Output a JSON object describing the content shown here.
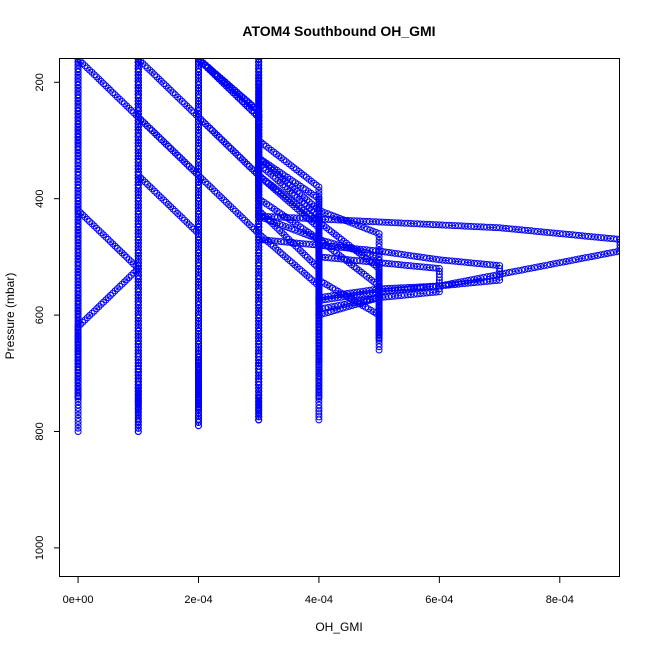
{
  "chart_data": {
    "type": "scatter",
    "title": "ATOM4 Southbound OH_GMI",
    "xlabel": "OH_GMI",
    "ylabel": "Pressure (mbar)",
    "xlim": [
      -3e-05,
      0.0009
    ],
    "ylim": [
      1050,
      160
    ],
    "y_reversed": true,
    "x_ticks": [
      0,
      0.0002,
      0.0004,
      0.0006,
      0.0008
    ],
    "x_tick_labels": [
      "0e+00",
      "2e-04",
      "4e-04",
      "6e-04",
      "8e-04"
    ],
    "y_ticks": [
      200,
      400,
      600,
      800,
      1000
    ],
    "y_tick_labels": [
      "200",
      "400",
      "600",
      "800",
      "1000"
    ],
    "grid": false,
    "legend": "none",
    "marker": "open-circle",
    "line_style": "dashed",
    "color": "#0000ff",
    "series": [
      {
        "x": [
          0.0,
          0.0,
          0.0,
          0.0,
          0.0,
          0.0,
          0.0,
          0.0
        ],
        "y": [
          160,
          300,
          420,
          520,
          620,
          700,
          760,
          800
        ]
      },
      {
        "x": [
          0.0,
          0.0,
          0.0,
          0.0001,
          0.0,
          0.0,
          0.0
        ],
        "y": [
          160,
          300,
          420,
          520,
          620,
          700,
          740
        ]
      },
      {
        "x": [
          0.0,
          0.0,
          0.0,
          0.0,
          0.0,
          0.0,
          0.0,
          0.0
        ],
        "y": [
          160,
          260,
          360,
          460,
          560,
          650,
          710,
          740
        ]
      },
      {
        "x": [
          0.0,
          0.0001,
          0.0001,
          0.0001,
          0.0001,
          0.0001,
          0.0001,
          0.0001
        ],
        "y": [
          160,
          260,
          360,
          460,
          560,
          650,
          720,
          750
        ]
      },
      {
        "x": [
          0.0001,
          0.0001,
          0.0001,
          0.0001,
          0.0001,
          0.0001,
          0.0001,
          0.0001
        ],
        "y": [
          160,
          260,
          360,
          460,
          560,
          650,
          730,
          760
        ]
      },
      {
        "x": [
          0.0001,
          0.0001,
          0.0001,
          0.0001,
          0.0001,
          0.0001,
          0.0001,
          0.0001,
          0.0001
        ],
        "y": [
          160,
          260,
          360,
          460,
          560,
          650,
          720,
          760,
          800
        ]
      },
      {
        "x": [
          0.0001,
          0.0001,
          0.0001,
          0.0001,
          0.0001,
          0.0001,
          0.0001,
          0.0001
        ],
        "y": [
          160,
          260,
          360,
          460,
          560,
          650,
          730,
          800
        ]
      },
      {
        "x": [
          0.0001,
          0.0001,
          0.0001,
          0.0002,
          0.0002,
          0.0002,
          0.0002,
          0.0002
        ],
        "y": [
          160,
          260,
          360,
          460,
          560,
          650,
          740,
          780
        ]
      },
      {
        "x": [
          0.0001,
          0.0001,
          0.0002,
          0.0002,
          0.0002,
          0.0002,
          0.0002,
          0.0002
        ],
        "y": [
          160,
          260,
          360,
          460,
          560,
          650,
          740,
          790
        ]
      },
      {
        "x": [
          0.0001,
          0.0001,
          0.0002,
          0.0002,
          0.0002,
          0.0002,
          0.0002
        ],
        "y": [
          160,
          260,
          360,
          460,
          560,
          650,
          740
        ]
      },
      {
        "x": [
          0.0001,
          0.0002,
          0.0002,
          0.0002,
          0.0002,
          0.0002,
          0.0002,
          0.0002
        ],
        "y": [
          160,
          260,
          360,
          460,
          560,
          650,
          720,
          760
        ]
      },
      {
        "x": [
          0.0002,
          0.0002,
          0.0002,
          0.0002,
          0.0002,
          0.0002,
          0.0002
        ],
        "y": [
          160,
          260,
          360,
          460,
          560,
          650,
          720
        ]
      },
      {
        "x": [
          0.0002,
          0.0002,
          0.0002,
          0.0003,
          0.0003,
          0.0003,
          0.0003
        ],
        "y": [
          160,
          260,
          360,
          460,
          560,
          650,
          720
        ]
      },
      {
        "x": [
          0.0002,
          0.0002,
          0.0002,
          0.0002,
          0.0002,
          0.0002,
          0.0002,
          0.0002
        ],
        "y": [
          160,
          260,
          360,
          460,
          560,
          650,
          730,
          790
        ]
      },
      {
        "x": [
          0.0002,
          0.0002,
          0.0003,
          0.0003,
          0.0003,
          0.0003,
          0.0003,
          0.0003,
          0.0003
        ],
        "y": [
          160,
          260,
          360,
          460,
          560,
          650,
          720,
          750,
          780
        ]
      },
      {
        "x": [
          0.0002,
          0.0002,
          0.0003,
          0.0003,
          0.0003,
          0.0003,
          0.0003,
          0.0003
        ],
        "y": [
          160,
          260,
          360,
          460,
          560,
          650,
          720,
          780
        ]
      },
      {
        "x": [
          0.0002,
          0.0003,
          0.0003,
          0.0003,
          0.0003,
          0.0003,
          0.0003,
          0.0003,
          0.0003
        ],
        "y": [
          160,
          260,
          360,
          460,
          560,
          650,
          720,
          760,
          780
        ]
      },
      {
        "x": [
          0.0002,
          0.0003,
          0.0003,
          0.0003,
          0.0003,
          0.0003,
          0.0003
        ],
        "y": [
          160,
          260,
          360,
          460,
          560,
          650,
          720
        ]
      },
      {
        "x": [
          0.0002,
          0.0003,
          0.0003,
          0.0003,
          0.0003,
          0.0004,
          0.0004
        ],
        "y": [
          160,
          250,
          330,
          400,
          460,
          550,
          600
        ]
      },
      {
        "x": [
          0.0002,
          0.0003,
          0.0003,
          0.0003,
          0.0004,
          0.0004,
          0.0004,
          0.0004
        ],
        "y": [
          160,
          250,
          320,
          420,
          520,
          600,
          660,
          680
        ]
      },
      {
        "x": [
          0.0002,
          0.0003,
          0.0003,
          0.0003,
          0.0004,
          0.0004,
          0.0005,
          0.0005
        ],
        "y": [
          160,
          250,
          320,
          400,
          470,
          540,
          600,
          640
        ]
      },
      {
        "x": [
          0.0002,
          0.0003,
          0.0003,
          0.0004,
          0.0004,
          0.0004,
          0.0004,
          0.0004,
          0.0004
        ],
        "y": [
          160,
          250,
          340,
          430,
          520,
          600,
          660,
          700,
          740
        ]
      },
      {
        "x": [
          0.0002,
          0.0003,
          0.0003,
          0.0004,
          0.0004,
          0.0004,
          0.0004,
          0.0004,
          0.0004,
          0.0004
        ],
        "y": [
          160,
          250,
          330,
          420,
          520,
          620,
          680,
          710,
          760,
          780
        ]
      },
      {
        "x": [
          0.0002,
          0.0003,
          0.0003,
          0.0004,
          0.0005,
          0.0005,
          0.0005,
          0.0005
        ],
        "y": [
          160,
          260,
          360,
          440,
          520,
          580,
          620,
          640
        ]
      },
      {
        "x": [
          0.0003,
          0.0003,
          0.0003,
          0.0004,
          0.0004,
          0.0005,
          0.0005,
          0.0005
        ],
        "y": [
          160,
          270,
          330,
          400,
          470,
          550,
          600,
          660
        ]
      },
      {
        "x": [
          0.0003,
          0.0003,
          0.0003,
          0.0003,
          0.0004,
          0.0004,
          0.0004
        ],
        "y": [
          160,
          240,
          310,
          360,
          450,
          560,
          660
        ]
      },
      {
        "x": [
          0.0003,
          0.0003,
          0.0004,
          0.0004,
          0.0005,
          0.0005,
          0.0005,
          0.0005,
          0.0005
        ],
        "y": [
          160,
          300,
          380,
          420,
          460,
          500,
          540,
          580,
          610
        ]
      },
      {
        "x": [
          0.0003,
          0.0003,
          0.0005,
          0.0006,
          0.0007,
          0.0008,
          0.0009,
          0.0009,
          0.0008,
          0.0007,
          0.0006,
          0.0005,
          0.0004,
          0.0004
        ],
        "y": [
          420,
          430,
          440,
          445,
          450,
          460,
          470,
          490,
          510,
          530,
          550,
          560,
          575,
          580
        ]
      },
      {
        "x": [
          0.0003,
          0.0004,
          0.0005,
          0.0006,
          0.0007,
          0.0007,
          0.0006,
          0.0005,
          0.0004,
          0.0004
        ],
        "y": [
          470,
          480,
          490,
          505,
          515,
          540,
          550,
          555,
          570,
          580
        ]
      },
      {
        "x": [
          0.0004,
          0.0004,
          0.0005,
          0.0006,
          0.0006,
          0.0006,
          0.0005,
          0.0004
        ],
        "y": [
          480,
          500,
          510,
          520,
          540,
          560,
          570,
          590
        ]
      },
      {
        "x": [
          0.0003,
          0.0004,
          0.0005,
          0.0005,
          0.0005,
          0.0004
        ],
        "y": [
          430,
          470,
          500,
          540,
          570,
          600
        ]
      }
    ]
  }
}
